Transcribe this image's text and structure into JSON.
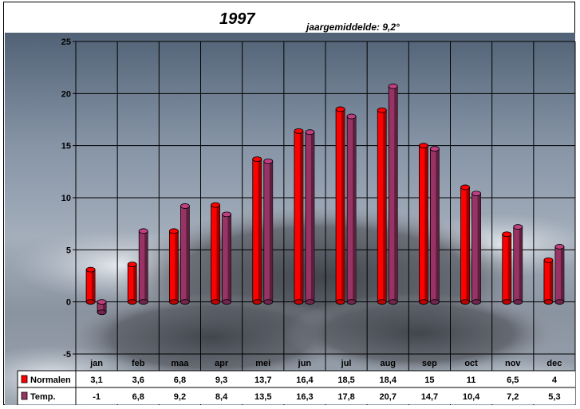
{
  "chart_data": {
    "type": "bar",
    "title": "1997",
    "subtitle": "jaargemiddelde: 9,2°",
    "categories": [
      "jan",
      "feb",
      "maa",
      "apr",
      "mei",
      "jun",
      "jul",
      "aug",
      "sep",
      "oct",
      "nov",
      "dec"
    ],
    "series": [
      {
        "name": "Normalen",
        "color": "#ff0000",
        "values": [
          3.1,
          3.6,
          6.8,
          9.3,
          13.7,
          16.4,
          18.5,
          18.4,
          15,
          11,
          6.5,
          4
        ],
        "labels": [
          "3,1",
          "3,6",
          "6,8",
          "9,3",
          "13,7",
          "16,4",
          "18,5",
          "18,4",
          "15",
          "11",
          "6,5",
          "4"
        ]
      },
      {
        "name": "Temp.",
        "color": "#993366",
        "values": [
          -1,
          6.8,
          9.2,
          8.4,
          13.5,
          16.3,
          17.8,
          20.7,
          14.7,
          10.4,
          7.2,
          5.3
        ],
        "labels": [
          "-1",
          "6,8",
          "9,2",
          "8,4",
          "13,5",
          "16,3",
          "17,8",
          "20,7",
          "14,7",
          "10,4",
          "7,2",
          "5,3"
        ]
      }
    ],
    "ylim": [
      -5,
      25
    ],
    "yticks": [
      -5,
      0,
      5,
      10,
      15,
      20,
      25
    ],
    "grid": true,
    "legend": "data-table-left",
    "xlabel": "",
    "ylabel": ""
  }
}
